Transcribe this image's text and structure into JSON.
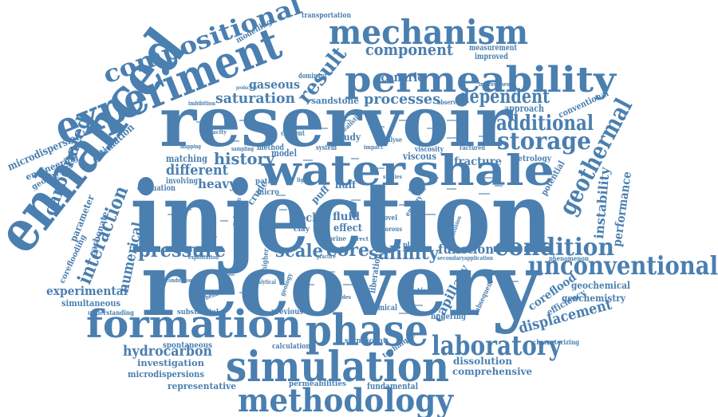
{
  "word_color": "#4a7fb0",
  "background_color": "#ffffff",
  "words": {
    "injection": "injection",
    "recovery": "recovery",
    "reservoir": "reservoir",
    "water": "water",
    "shale": "shale",
    "enhanced": "enhanced",
    "experiment": "experiment",
    "permeability": "permeability",
    "mechanism": "mechanism",
    "compositional": "compositional",
    "phase": "phase",
    "simulation": "simulation",
    "formation": "formation",
    "methodology": "methodology",
    "laboratory": "laboratory",
    "unconventional": "unconventional",
    "condition": "condition",
    "geothermal": "geothermal",
    "storage": "storage",
    "additional": "additional",
    "dependent": "dependent",
    "result": "result",
    "component": "component",
    "pressure": "pressure",
    "interaction": "interaction",
    "carbonated": "carbonated",
    "numerical": "numerical",
    "experimental": "experimental",
    "hydrocarbon": "hydrocarbon",
    "displacement": "displacement",
    "instability": "instability",
    "performance": "performance",
    "coreflood": "coreflood",
    "saturation": "saturation",
    "processes": "processes",
    "history": "history",
    "different": "different",
    "salinity": "salinity",
    "core": "core",
    "scale": "scale",
    "function": "function",
    "capillary": "capillary",
    "fracture": "fracture",
    "gaseous": "gaseous",
    "scenario": "scenario",
    "sandstone": "sandstone",
    "heavy": "heavy",
    "matching": "matching",
    "fluid": "fluid",
    "effect": "effect",
    "rock": "rock",
    "huff": "huff",
    "puff": "puff",
    "crude": "crude",
    "mineral": "mineral",
    "micro": "micro",
    "model": "model",
    "method": "method",
    "study": "study",
    "viscous": "viscous",
    "approach": "approach",
    "conventional": "conventional",
    "potential": "potential",
    "petrology": "petrology",
    "geochemical": "geochemical",
    "geochemistry": "geochemistry",
    "efficiency": "efficiency",
    "dissolution": "dissolution",
    "comprehensive": "comprehensive",
    "investigation": "investigation",
    "microdispersions": "microdispersions",
    "representative": "representative",
    "fundamental": "fundamental",
    "permeabilities": "permeabilities",
    "spontaneous": "spontaneous",
    "substantial": "substantial",
    "simultaneous": "simultaneous",
    "understanding": "understanding",
    "estimate": "estimate",
    "fingering": "fingering",
    "significant": "significant",
    "calculation": "calculation",
    "previous": "previous",
    "chemical": "chemical",
    "subsequent": "subsequent",
    "technique": "technique",
    "characterizing": "characterizing",
    "phenomenon": "phenomenon",
    "microdispersion": "microdispersion",
    "engineering": "engineering",
    "geophysics": "geophysics",
    "estimation": "estimation",
    "parameter": "parameter",
    "carbonate": "carbonate",
    "corefooding": "coreflooding",
    "modelling": "modelling",
    "transportation": "transportation",
    "measurement": "measurement",
    "improved": "improved",
    "improvement": "improvement",
    "observed": "observed",
    "evaluation": "evaluation",
    "involving": "involving",
    "content": "content",
    "system": "system",
    "viscosity": "viscosity",
    "analyse": "analyse",
    "realistic": "realistic",
    "dominant": "dominant",
    "imbibition": "imbibition",
    "capacity": "capacity",
    "mapping": "mapping",
    "sampling": "sampling",
    "exploitation": "exploitation",
    "conduction": "conduction",
    "analytical": "analytical",
    "secondary": "secondary",
    "application": "application",
    "place": "place",
    "clay": "clay",
    "brine": "brine",
    "direct": "direct",
    "higher": "higher",
    "geology": "geology",
    "behavior": "behavior",
    "includes": "includes",
    "liberation": "liberation",
    "energy": "energy",
    "novel": "novel",
    "porous": "porous",
    "field": "field",
    "path": "path",
    "light": "light",
    "studies": "studies",
    "calcite": "calcite",
    "reduction": "reduction",
    "ractured": "ractured",
    "practice": "practice",
    "production": "production",
    "cycle": "cycle",
    "impact": "impact",
    "diffusion": "diffusion"
  }
}
